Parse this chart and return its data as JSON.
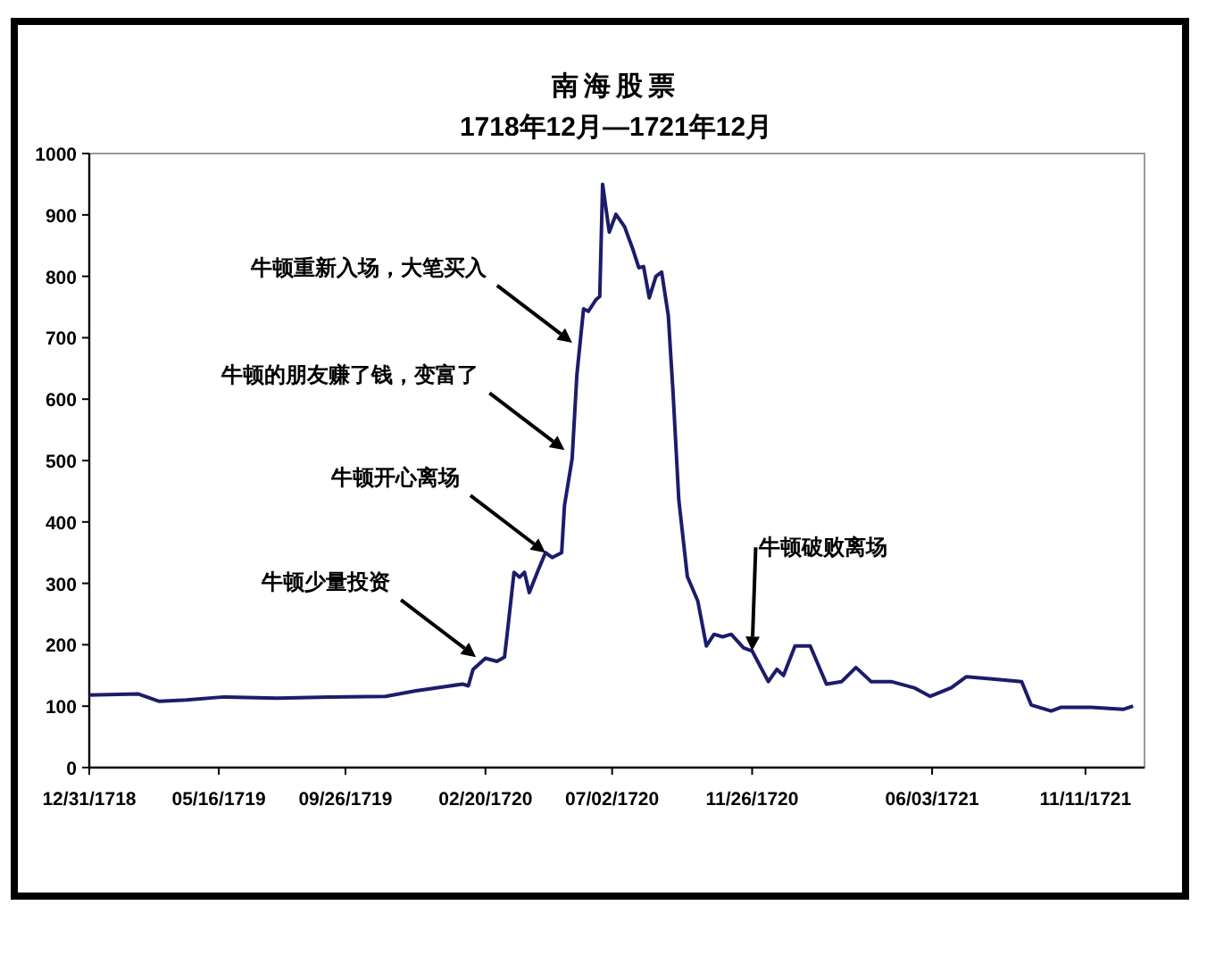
{
  "chart_data": {
    "type": "line",
    "title": "南海股票",
    "subtitle": "1718年12月—1721年12月",
    "x": [
      "1718-12-31",
      "1719-02-20",
      "1719-03-14",
      "1719-04-12",
      "1719-05-21",
      "1719-07-16",
      "1719-09-09",
      "1719-11-07",
      "1719-12-09",
      "1720-01-09",
      "1720-01-27",
      "1720-02-02",
      "1720-02-07",
      "1720-02-20",
      "1720-03-03",
      "1720-03-11",
      "1720-03-14",
      "1720-03-21",
      "1720-03-27",
      "1720-04-01",
      "1720-04-06",
      "1720-04-15",
      "1720-04-23",
      "1720-04-30",
      "1720-05-10",
      "1720-05-13",
      "1720-05-21",
      "1720-05-26",
      "1720-06-02",
      "1720-06-07",
      "1720-06-15",
      "1720-06-19",
      "1720-06-22",
      "1720-06-29",
      "1720-07-06",
      "1720-07-15",
      "1720-07-24",
      "1720-07-30",
      "1720-08-04",
      "1720-08-10",
      "1720-08-17",
      "1720-08-23",
      "1720-08-30",
      "1720-09-04",
      "1720-09-10",
      "1720-09-19",
      "1720-09-30",
      "1720-10-09",
      "1720-10-17",
      "1720-10-26",
      "1720-11-04",
      "1720-11-17",
      "1720-11-26",
      "1720-12-13",
      "1720-12-22",
      "1720-12-29",
      "1721-01-10",
      "1721-01-26",
      "1721-02-12",
      "1721-02-28",
      "1721-03-15",
      "1721-03-31",
      "1721-04-21",
      "1721-05-15",
      "1721-06-01",
      "1721-06-23",
      "1721-07-09",
      "1721-08-08",
      "1721-09-05",
      "1721-09-15",
      "1721-10-06",
      "1721-10-16",
      "1721-11-17",
      "1721-12-21",
      "1721-12-31"
    ],
    "values": [
      118,
      120,
      108,
      110,
      115,
      113,
      115,
      116,
      125,
      132,
      136,
      133,
      160,
      178,
      173,
      180,
      220,
      318,
      310,
      318,
      285,
      320,
      350,
      342,
      350,
      427,
      503,
      640,
      747,
      743,
      762,
      767,
      950,
      872,
      901,
      881,
      843,
      814,
      816,
      765,
      800,
      807,
      736,
      610,
      436,
      311,
      271,
      198,
      217,
      213,
      217,
      195,
      190,
      140,
      160,
      150,
      198,
      198,
      136,
      140,
      163,
      140,
      140,
      130,
      116,
      130,
      148,
      144,
      140,
      102,
      92,
      98,
      98,
      95,
      100
    ],
    "color": "#1c1c6b",
    "xlim": [
      "1718-12-31",
      "1722-01-12"
    ],
    "xticks": [
      {
        "value": "1718-12-31",
        "label": "12/31/1718"
      },
      {
        "value": "1719-05-16",
        "label": "05/16/1719"
      },
      {
        "value": "1719-09-26",
        "label": "09/26/1719"
      },
      {
        "value": "1720-02-20",
        "label": "02/20/1720"
      },
      {
        "value": "1720-07-02",
        "label": "07/02/1720"
      },
      {
        "value": "1720-11-26",
        "label": "11/26/1720"
      },
      {
        "value": "1721-06-03",
        "label": "06/03/1721"
      },
      {
        "value": "1721-11-11",
        "label": "11/11/1721"
      }
    ],
    "ylim": [
      0,
      1000
    ],
    "yticks": [
      0,
      100,
      200,
      300,
      400,
      500,
      600,
      700,
      800,
      900,
      1000
    ],
    "grid": false,
    "marker": "none",
    "line_style": "solid",
    "annotations": [
      {
        "text": "牛顿少量投资",
        "x": "1720-02-10",
        "y": 180
      },
      {
        "text": "牛顿开心离场",
        "x": "1720-04-23",
        "y": 350
      },
      {
        "text": "牛顿的朋友赚了钱，变富了",
        "x": "1720-05-13",
        "y": 517
      },
      {
        "text": "牛顿重新入场，大笔买入",
        "x": "1720-05-21",
        "y": 692
      },
      {
        "text": "牛顿破败离场",
        "x": "1720-11-26",
        "y": 190
      }
    ]
  }
}
